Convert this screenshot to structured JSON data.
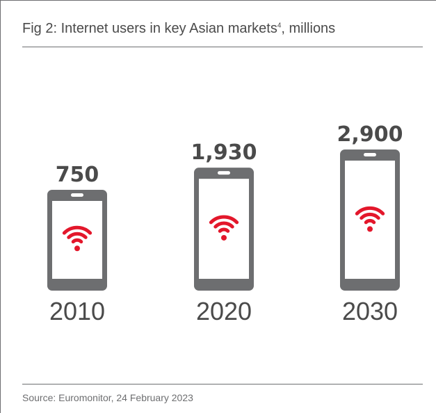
{
  "title": "Fig 2: Internet users in key Asian markets",
  "title_superscript": "4",
  "title_suffix": ", millions",
  "source": "Source: Euromonitor, 24 February 2023",
  "colors": {
    "phone": "#6d6e70",
    "screen": "#ffffff",
    "wifi": "#e3172b",
    "value_text": "#4a4a4a",
    "year_text": "#4a4a4a"
  },
  "chart_data": {
    "type": "bar",
    "title": "Fig 2: Internet users in key Asian markets4, millions",
    "categories": [
      "2010",
      "2020",
      "2030"
    ],
    "values": [
      750,
      1930,
      2900
    ],
    "value_labels": [
      "750",
      "1,930",
      "2,900"
    ],
    "xlabel": "",
    "ylabel": "",
    "grid": false,
    "legend": "none",
    "icon": "smartphone-wifi-icon"
  }
}
